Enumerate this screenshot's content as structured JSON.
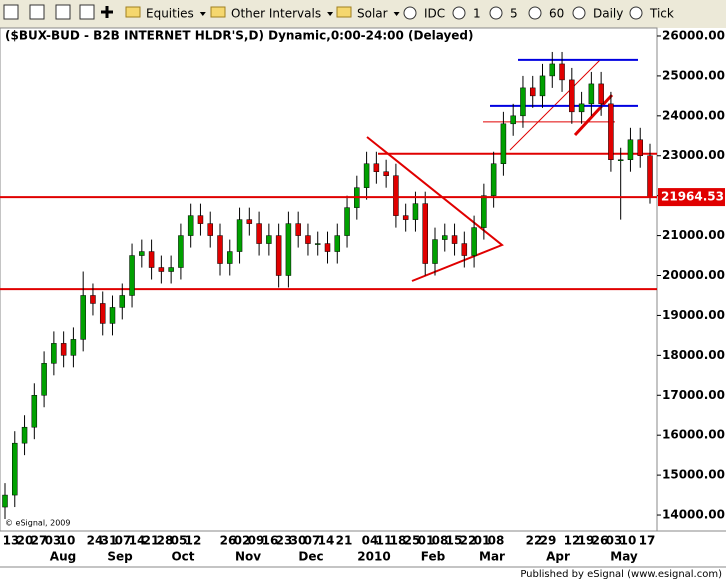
{
  "toolbar": {
    "items": [
      "Equities",
      "Other Intervals",
      "Solar",
      "IDC",
      "1",
      "5",
      "60",
      "Daily",
      "Tick"
    ]
  },
  "chart_data": {
    "type": "candlestick",
    "title": "($BUX-BUD - B2B INTERNET HLDR'S,D) Dynamic,0:00-24:00 (Delayed)",
    "watermark": "© eSignal, 2009",
    "x_labels": [
      "13",
      "20",
      "27",
      "03",
      "10",
      "24",
      "31",
      "07",
      "14",
      "21",
      "28",
      "05",
      "12",
      "26",
      "02",
      "09",
      "16",
      "23",
      "30",
      "07",
      "14",
      "21",
      "04",
      "11",
      "18",
      "25",
      "01",
      "08",
      "15",
      "22",
      "01",
      "08",
      "22",
      "29",
      "12",
      "19",
      "26",
      "03",
      "10",
      "17"
    ],
    "month_labels": [
      "Aug",
      "Sep",
      "Oct",
      "Nov",
      "Dec",
      "2010",
      "Feb",
      "Mar",
      "Apr",
      "May"
    ],
    "open": [
      14200,
      14500,
      15800,
      16200,
      17000,
      17800,
      18300,
      18000,
      18400,
      19500,
      19300,
      18800,
      19200,
      19500,
      20500,
      20600,
      20200,
      20100,
      20200,
      21000,
      21500,
      21300,
      21000,
      20300,
      20600,
      21400,
      21300,
      20800,
      21000,
      20000,
      21300,
      21000,
      20800,
      20800,
      20600,
      21000,
      21700,
      22200,
      22800,
      22600,
      22500,
      21500,
      21400,
      21800,
      20300,
      20900,
      21000,
      20800,
      20500,
      21200,
      22000,
      22800,
      23800,
      24000,
      24700,
      24500,
      25000,
      25300,
      24900,
      24100,
      24300,
      24800,
      24300,
      22900,
      22900,
      23400,
      23000
    ],
    "high": [
      14800,
      16100,
      16500,
      17300,
      18100,
      18600,
      18600,
      18700,
      20100,
      19800,
      19600,
      19500,
      19800,
      20800,
      20900,
      20900,
      20500,
      20500,
      21300,
      21800,
      21800,
      21600,
      21300,
      20900,
      21700,
      21700,
      21600,
      21300,
      21300,
      21600,
      21600,
      21300,
      21100,
      21100,
      21300,
      22000,
      22500,
      23100,
      23100,
      22900,
      22800,
      21800,
      22100,
      22100,
      21200,
      21300,
      21300,
      21100,
      21500,
      22300,
      23100,
      24100,
      24300,
      25000,
      25000,
      25300,
      25600,
      25600,
      25200,
      24600,
      25100,
      25100,
      24600,
      23200,
      23700,
      23700,
      23300
    ],
    "low": [
      13900,
      14200,
      15500,
      15900,
      16700,
      17500,
      17700,
      17700,
      18100,
      19000,
      18500,
      18500,
      18900,
      19200,
      20200,
      19900,
      19800,
      19800,
      19900,
      20700,
      21000,
      20700,
      20000,
      20000,
      20300,
      21000,
      20500,
      20500,
      19700,
      19700,
      20700,
      20500,
      20500,
      20300,
      20300,
      20700,
      21400,
      21900,
      22300,
      22200,
      21200,
      21100,
      21100,
      20000,
      20000,
      20600,
      20500,
      20200,
      20200,
      20900,
      21700,
      22500,
      23500,
      23700,
      24200,
      24200,
      24700,
      24600,
      23800,
      23800,
      24000,
      24000,
      22600,
      21400,
      22600,
      22700,
      21800
    ],
    "close": [
      14500,
      15800,
      16200,
      17000,
      17800,
      18300,
      18000,
      18400,
      19500,
      19300,
      18800,
      19200,
      19500,
      20500,
      20600,
      20200,
      20100,
      20200,
      21000,
      21500,
      21300,
      21000,
      20300,
      20600,
      21400,
      21300,
      20800,
      21000,
      20000,
      21300,
      21000,
      20800,
      20800,
      20600,
      21000,
      21700,
      22200,
      22800,
      22600,
      22500,
      21500,
      21400,
      21800,
      20300,
      20900,
      21000,
      20800,
      20500,
      21200,
      22000,
      22800,
      23800,
      24000,
      24700,
      24500,
      25000,
      25300,
      24900,
      24100,
      24300,
      24800,
      24300,
      22900,
      22900,
      23400,
      23000,
      21965
    ],
    "up_color": "#00a000",
    "down_color": "#e00000",
    "last_price": 21964.53,
    "last_price_color": "#e00000",
    "levels": [
      {
        "value": 19660,
        "color": "#e00000"
      },
      {
        "value": 23050,
        "color": "#e00000"
      },
      {
        "value": 23850,
        "color": "#e00000"
      },
      {
        "value": 25400,
        "color": "#0000e0"
      },
      {
        "value": 24250,
        "color": "#0000e0"
      }
    ],
    "ylim": [
      13600,
      26200
    ],
    "yticks": [
      {
        "value": 14000,
        "label": "14000.00"
      },
      {
        "value": 15000,
        "label": "15000.00"
      },
      {
        "value": 16000,
        "label": "16000.00"
      },
      {
        "value": 17000,
        "label": "17000.00"
      },
      {
        "value": 18000,
        "label": "18000.00"
      },
      {
        "value": 19000,
        "label": "19000.00"
      },
      {
        "value": 20000,
        "label": "20000.00"
      },
      {
        "value": 21000,
        "label": "21000.00"
      },
      {
        "value": 22000,
        "label": "22000.00"
      },
      {
        "value": 23000,
        "label": "23000.00"
      },
      {
        "value": 24000,
        "label": "24000.00"
      },
      {
        "value": 25000,
        "label": "25000.00"
      },
      {
        "value": 26000,
        "label": "26000.00"
      }
    ]
  },
  "footer": "Published by eSignal (www.esignal.com)"
}
